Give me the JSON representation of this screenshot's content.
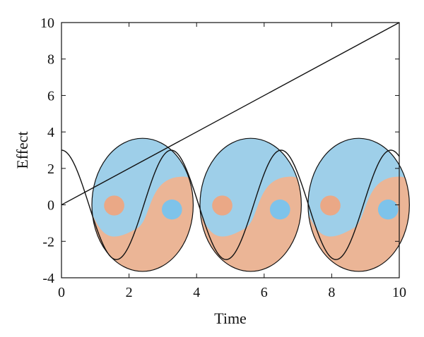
{
  "chart_data": {
    "type": "line",
    "title": "",
    "xlabel": "Time",
    "ylabel": "Effect",
    "xlim": [
      0,
      10
    ],
    "ylim": [
      -4,
      10
    ],
    "xticks": [
      "0",
      "2",
      "4",
      "6",
      "8",
      "10"
    ],
    "yticks": [
      "-4",
      "-2",
      "0",
      "2",
      "4",
      "6",
      "8",
      "10"
    ],
    "grid": false,
    "legend": "none",
    "series": [
      {
        "kind": "linear",
        "points": [
          [
            0,
            0
          ],
          [
            10,
            10
          ]
        ],
        "color": "#111111"
      },
      {
        "kind": "oscillation",
        "amplitude": 3,
        "period": 3.25,
        "phase_at_zero": "maximum",
        "x_range": [
          0,
          10
        ],
        "color": "#111111"
      }
    ],
    "yin_yang_shapes": {
      "centers": [
        [
          2.4,
          0
        ],
        [
          5.6,
          0
        ],
        [
          8.8,
          0
        ]
      ],
      "half_width": 1.5,
      "half_height": 3.65,
      "blue_color": "#9ecfe9",
      "orange_color": "#ebb596",
      "blue_dot_color": "#7ec3ea",
      "orange_dot_color": "#eaa886",
      "outline_color": "#111111"
    }
  }
}
